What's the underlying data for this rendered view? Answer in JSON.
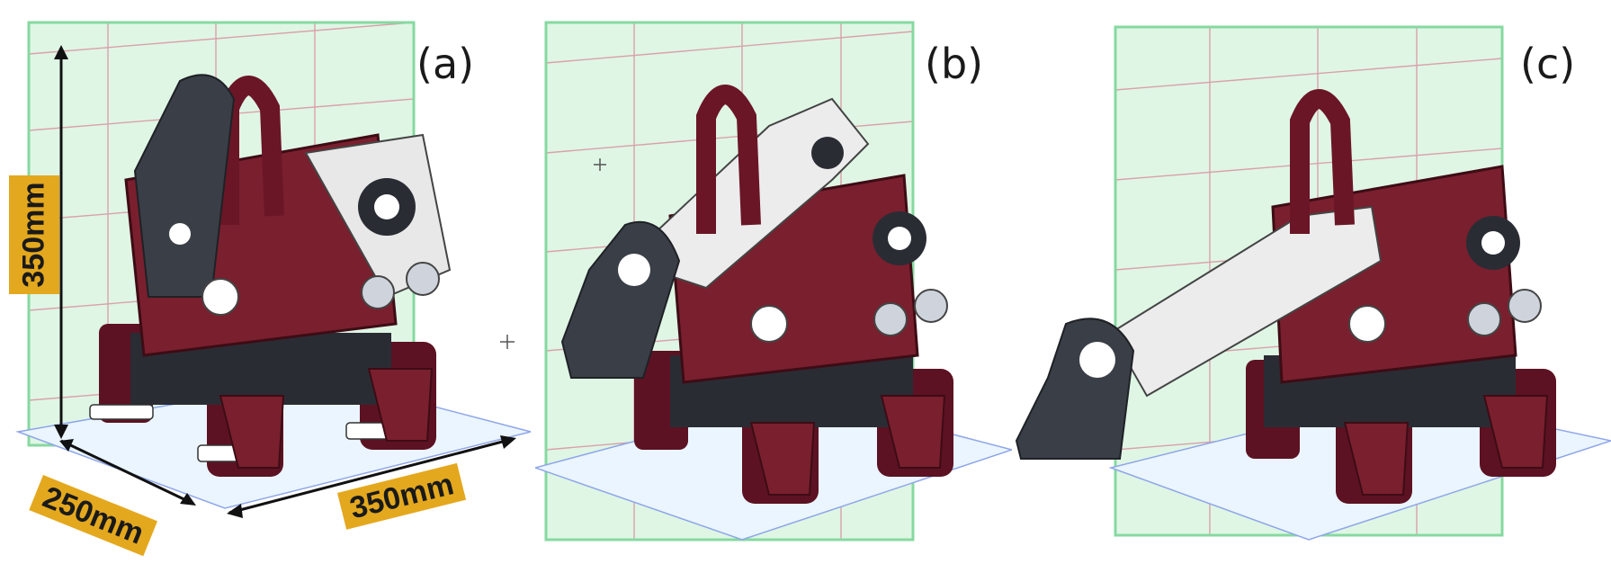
{
  "panels": [
    {
      "id": "a",
      "label": "(a)",
      "arm_state": "folded"
    },
    {
      "id": "b",
      "label": "(b)",
      "arm_state": "partially-extended"
    },
    {
      "id": "c",
      "label": "(c)",
      "arm_state": "fully-extended"
    }
  ],
  "dimensions": {
    "height": "350mm",
    "depth": "250mm",
    "width": "350mm"
  },
  "colors": {
    "body": "#7a1f2e",
    "body_dark": "#4e101b",
    "arm_white": "#ececec",
    "claw_dark": "#3a3f47",
    "grid_green": "#b9efc9",
    "grid_red": "#d65c7a",
    "grid_blue": "#8fa6e8",
    "dim_tag": "#e4a81e"
  }
}
